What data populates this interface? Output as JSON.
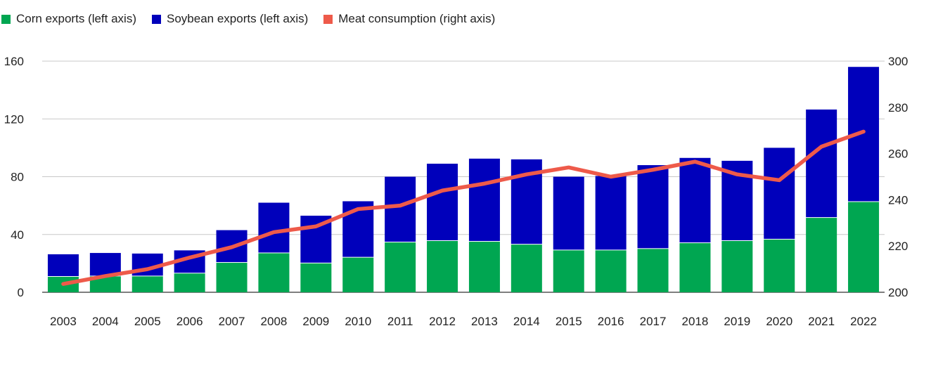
{
  "chart_data": {
    "type": "bar",
    "stacked": true,
    "title": "",
    "xlabel": "",
    "ylabel": "",
    "y2label": "",
    "categories": [
      "2003",
      "2004",
      "2005",
      "2006",
      "2007",
      "2008",
      "2009",
      "2010",
      "2011",
      "2012",
      "2013",
      "2014",
      "2015",
      "2016",
      "2017",
      "2018",
      "2019",
      "2020",
      "2021",
      "2022"
    ],
    "series": [
      {
        "name": "Corn exports (left axis)",
        "type": "bar",
        "axis": "left",
        "color": "#00a651",
        "values": [
          10.7,
          11,
          11,
          13,
          20.4,
          27,
          20,
          24,
          34.5,
          35.5,
          35,
          33,
          29,
          29,
          30,
          34,
          35.5,
          36.5,
          51.5,
          62.5
        ]
      },
      {
        "name": "Soybean exports (left axis)",
        "type": "bar",
        "axis": "left",
        "color": "#0000bb",
        "values": [
          15.6,
          16.2,
          15.8,
          16,
          22.6,
          35,
          33,
          39,
          45.5,
          53.5,
          57.5,
          59,
          51,
          51.5,
          58,
          59,
          55.5,
          63.5,
          75,
          93.5
        ]
      },
      {
        "name": "Meat consumption (right axis)",
        "type": "line",
        "axis": "right",
        "color": "#ee5a4a",
        "values": [
          203.6,
          207,
          210,
          215,
          219.5,
          226,
          228.5,
          236,
          237.5,
          244,
          247,
          251,
          254,
          250,
          253,
          256.5,
          251,
          248.5,
          263,
          269.5
        ]
      }
    ],
    "ylim": [
      0,
      160
    ],
    "yticks": [
      "0",
      "40",
      "80",
      "120",
      "160"
    ],
    "y2lim": [
      200,
      300
    ],
    "y2ticks": [
      "200",
      "220",
      "240",
      "260",
      "280",
      "300"
    ],
    "grid": true,
    "legend_position": "top-left"
  }
}
